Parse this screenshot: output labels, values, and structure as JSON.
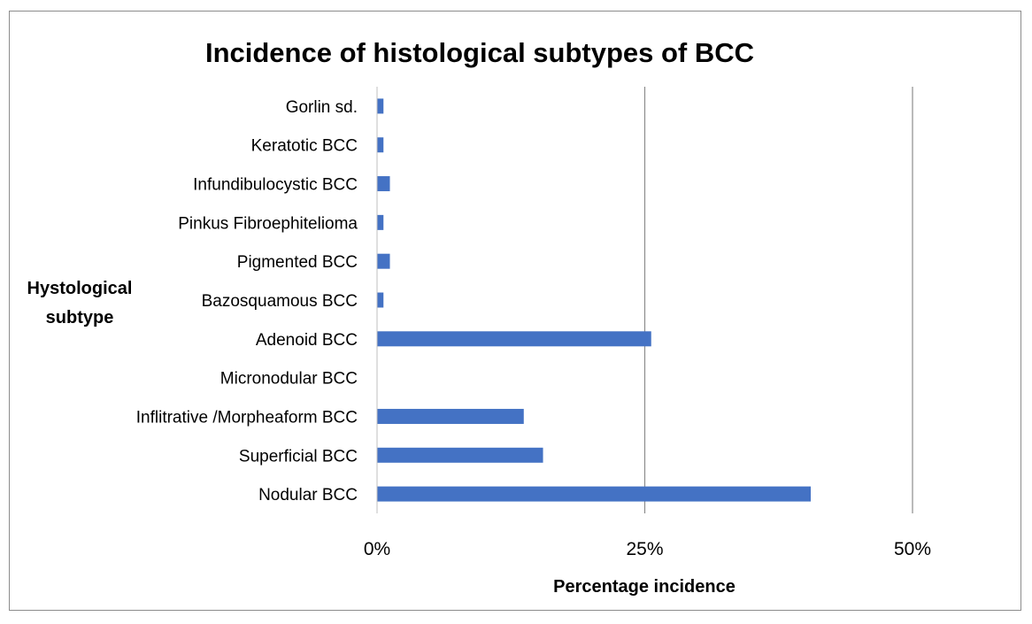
{
  "chart_data": {
    "type": "bar",
    "orientation": "horizontal",
    "title": "Incidence of histological subtypes of BCC",
    "ylabel_lines": [
      "Hystological",
      "subtype"
    ],
    "xlabel": "Percentage incidence",
    "categories": [
      "Gorlin sd.",
      "Keratotic BCC",
      "Infundibulocystic BCC",
      "Pinkus Fibroephitelioma",
      "Pigmented BCC",
      "Bazosquamous BCC",
      "Adenoid BCC",
      "Micronodular BCC",
      "Inflitrative /Morpheaform BCC",
      "Superficial BCC",
      "Nodular BCC"
    ],
    "values": [
      0.6,
      0.6,
      1.2,
      0.6,
      1.2,
      0.6,
      25.6,
      0,
      13.7,
      15.5,
      40.5
    ],
    "unit": "%",
    "xlim": [
      0,
      50
    ],
    "xticks": [
      0,
      25,
      50
    ],
    "xtick_labels": [
      "0%",
      "25%",
      "50%"
    ],
    "vertical_gridlines": true,
    "legend": "none",
    "bar_color": "#4472c4"
  }
}
